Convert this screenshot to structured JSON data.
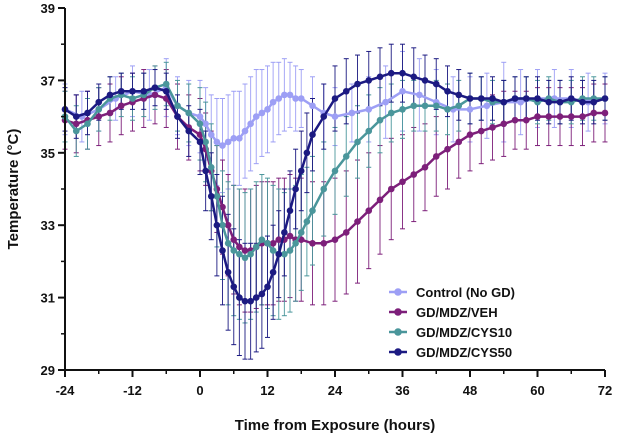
{
  "chart_data": {
    "type": "line",
    "title": "",
    "xlabel": "Time from Exposure (hours)",
    "ylabel": "Temperature (°C)",
    "xlim": [
      -24,
      72
    ],
    "ylim": [
      29,
      39
    ],
    "xticks": [
      -24,
      -12,
      0,
      12,
      24,
      36,
      48,
      60,
      72
    ],
    "yticks": [
      29,
      31,
      33,
      35,
      37,
      39
    ],
    "error_bars": true,
    "grid": false,
    "legend_position": "bottom-right",
    "series": [
      {
        "name": "Control (No GD)",
        "color": "#9d9ff5",
        "x": [
          -24,
          -21,
          -18,
          -15,
          -12,
          -9,
          -6,
          -4,
          -2,
          0,
          1,
          2,
          3,
          4,
          5,
          6,
          7,
          8,
          9,
          10,
          11,
          12,
          13,
          14,
          15,
          16,
          17,
          18,
          20,
          22,
          24,
          27,
          30,
          33,
          36,
          39,
          42,
          45,
          48,
          51,
          54,
          57,
          60,
          63,
          66,
          69,
          72
        ],
        "y": [
          36.2,
          36.0,
          36.2,
          36.5,
          36.7,
          36.6,
          36.8,
          36.3,
          36.1,
          36.0,
          35.8,
          35.5,
          35.3,
          35.2,
          35.3,
          35.4,
          35.4,
          35.6,
          35.8,
          36.0,
          36.1,
          36.2,
          36.4,
          36.5,
          36.6,
          36.6,
          36.5,
          36.5,
          36.3,
          36.1,
          36.0,
          36.1,
          36.2,
          36.4,
          36.7,
          36.6,
          36.4,
          36.2,
          36.2,
          36.3,
          36.4,
          36.4,
          36.5,
          36.5,
          36.5,
          36.4,
          36.5
        ],
        "error": [
          0.7,
          0.7,
          0.6,
          0.6,
          0.7,
          0.7,
          0.8,
          0.8,
          0.9,
          1.0,
          1.0,
          1.1,
          1.2,
          1.3,
          1.3,
          1.3,
          1.3,
          1.3,
          1.3,
          1.3,
          1.2,
          1.2,
          1.1,
          1.0,
          1.0,
          0.9,
          0.9,
          0.8,
          0.8,
          0.8,
          0.8,
          0.8,
          0.9,
          1.0,
          1.1,
          1.0,
          0.9,
          0.9,
          0.9,
          0.9,
          1.1,
          0.9,
          0.8,
          0.8,
          0.8,
          0.8,
          0.7
        ]
      },
      {
        "name": "GD/MDZ/VEH",
        "color": "#7d1f7a",
        "x": [
          -24,
          -22,
          -20,
          -18,
          -16,
          -14,
          -12,
          -10,
          -8,
          -6,
          -4,
          -2,
          0,
          1,
          2,
          3,
          4,
          5,
          6,
          7,
          8,
          9,
          10,
          11,
          12,
          13,
          14,
          15,
          16,
          17,
          18,
          20,
          22,
          24,
          26,
          28,
          30,
          32,
          34,
          36,
          38,
          40,
          42,
          44,
          46,
          48,
          50,
          52,
          54,
          56,
          58,
          60,
          62,
          64,
          66,
          68,
          70,
          72
        ],
        "y": [
          35.9,
          35.8,
          35.9,
          36.0,
          36.1,
          36.3,
          36.4,
          36.5,
          36.6,
          36.5,
          36.0,
          35.7,
          35.5,
          35.1,
          34.5,
          34.0,
          33.5,
          33.0,
          32.6,
          32.4,
          32.3,
          32.3,
          32.4,
          32.5,
          32.5,
          32.5,
          32.6,
          32.6,
          32.7,
          32.6,
          32.6,
          32.5,
          32.5,
          32.6,
          32.8,
          33.1,
          33.4,
          33.7,
          34.0,
          34.2,
          34.4,
          34.6,
          34.9,
          35.1,
          35.3,
          35.5,
          35.6,
          35.7,
          35.8,
          35.9,
          35.9,
          36.0,
          36.0,
          36.0,
          36.0,
          36.0,
          36.1,
          36.1
        ],
        "error": [
          0.8,
          0.8,
          0.8,
          0.8,
          0.8,
          0.8,
          0.8,
          0.8,
          0.8,
          0.8,
          0.9,
          0.9,
          1.0,
          1.0,
          1.1,
          1.2,
          1.3,
          1.4,
          1.5,
          1.6,
          1.7,
          1.7,
          1.7,
          1.7,
          1.7,
          1.7,
          1.7,
          1.7,
          1.7,
          1.7,
          1.7,
          1.7,
          1.7,
          1.7,
          1.7,
          1.7,
          1.6,
          1.5,
          1.4,
          1.3,
          1.3,
          1.2,
          1.1,
          1.1,
          1.0,
          1.0,
          0.9,
          0.9,
          0.9,
          0.8,
          0.8,
          0.8,
          0.8,
          0.8,
          0.8,
          0.8,
          0.8,
          0.8
        ]
      },
      {
        "name": "GD/MDZ/CYS10",
        "color": "#4a969b",
        "x": [
          -24,
          -22,
          -20,
          -18,
          -16,
          -14,
          -12,
          -10,
          -8,
          -6,
          -4,
          -2,
          0,
          1,
          2,
          3,
          4,
          5,
          6,
          7,
          8,
          9,
          10,
          11,
          12,
          13,
          14,
          15,
          16,
          17,
          18,
          19,
          20,
          22,
          24,
          26,
          28,
          30,
          32,
          34,
          36,
          38,
          40,
          42,
          44,
          46,
          48,
          50,
          52,
          54,
          56,
          58,
          60,
          62,
          64,
          66,
          68,
          70,
          72
        ],
        "y": [
          36.0,
          35.6,
          35.8,
          36.2,
          36.5,
          36.6,
          36.5,
          36.6,
          36.8,
          36.9,
          36.3,
          36.1,
          35.8,
          35.3,
          34.6,
          33.8,
          33.0,
          32.5,
          32.3,
          32.2,
          32.1,
          32.2,
          32.4,
          32.6,
          32.5,
          32.3,
          32.2,
          32.2,
          32.3,
          32.5,
          32.8,
          33.1,
          33.4,
          34.0,
          34.5,
          34.9,
          35.3,
          35.6,
          35.9,
          36.1,
          36.2,
          36.3,
          36.3,
          36.3,
          36.2,
          36.3,
          36.5,
          36.5,
          36.4,
          36.4,
          36.5,
          36.5,
          36.4,
          36.5,
          36.4,
          36.4,
          36.5,
          36.5,
          36.5
        ],
        "error": [
          0.7,
          0.7,
          0.7,
          0.6,
          0.6,
          0.6,
          0.6,
          0.6,
          0.6,
          0.6,
          0.7,
          0.8,
          1.0,
          1.1,
          1.2,
          1.4,
          1.5,
          1.7,
          1.8,
          1.8,
          1.8,
          1.8,
          1.8,
          1.8,
          1.8,
          1.8,
          1.8,
          1.7,
          1.7,
          1.6,
          1.6,
          1.5,
          1.5,
          1.3,
          1.2,
          1.1,
          1.0,
          1.0,
          0.9,
          0.8,
          0.8,
          0.7,
          0.7,
          0.7,
          0.7,
          0.7,
          0.7,
          0.6,
          0.6,
          0.6,
          0.6,
          0.6,
          0.6,
          0.6,
          0.6,
          0.6,
          0.6,
          0.6,
          0.6
        ]
      },
      {
        "name": "GD/MDZ/CYS50",
        "color": "#1c1a82",
        "x": [
          -24,
          -22,
          -20,
          -18,
          -16,
          -14,
          -12,
          -10,
          -8,
          -6,
          -4,
          -2,
          0,
          1,
          2,
          3,
          4,
          5,
          6,
          7,
          8,
          9,
          10,
          11,
          12,
          13,
          14,
          15,
          16,
          17,
          18,
          19,
          20,
          22,
          24,
          26,
          28,
          30,
          32,
          34,
          36,
          38,
          40,
          42,
          44,
          46,
          48,
          50,
          52,
          54,
          56,
          58,
          60,
          62,
          64,
          66,
          68,
          70,
          72
        ],
        "y": [
          36.2,
          36.0,
          36.1,
          36.4,
          36.6,
          36.7,
          36.7,
          36.7,
          36.8,
          36.7,
          36.0,
          35.6,
          35.3,
          34.5,
          33.8,
          33.0,
          32.3,
          31.7,
          31.3,
          31.0,
          30.9,
          30.9,
          31.0,
          31.1,
          31.3,
          31.7,
          32.2,
          32.8,
          33.4,
          34.0,
          34.5,
          35.0,
          35.5,
          36.0,
          36.5,
          36.7,
          36.9,
          37.0,
          37.1,
          37.2,
          37.2,
          37.1,
          37.0,
          36.9,
          36.7,
          36.6,
          36.5,
          36.5,
          36.5,
          36.4,
          36.5,
          36.5,
          36.5,
          36.4,
          36.4,
          36.5,
          36.4,
          36.4,
          36.5
        ],
        "error": [
          0.6,
          0.6,
          0.6,
          0.5,
          0.5,
          0.5,
          0.5,
          0.5,
          0.5,
          0.5,
          0.6,
          0.7,
          0.9,
          1.1,
          1.2,
          1.4,
          1.5,
          1.6,
          1.6,
          1.6,
          1.6,
          1.6,
          1.5,
          1.5,
          1.4,
          1.3,
          1.2,
          1.2,
          1.1,
          1.1,
          1.1,
          1.1,
          1.0,
          0.9,
          0.9,
          0.9,
          0.8,
          0.8,
          0.8,
          0.8,
          0.8,
          0.8,
          0.7,
          0.7,
          0.7,
          0.7,
          0.7,
          0.6,
          0.6,
          0.6,
          0.6,
          0.6,
          0.6,
          0.6,
          0.6,
          0.6,
          0.6,
          0.6,
          0.6
        ]
      }
    ]
  }
}
